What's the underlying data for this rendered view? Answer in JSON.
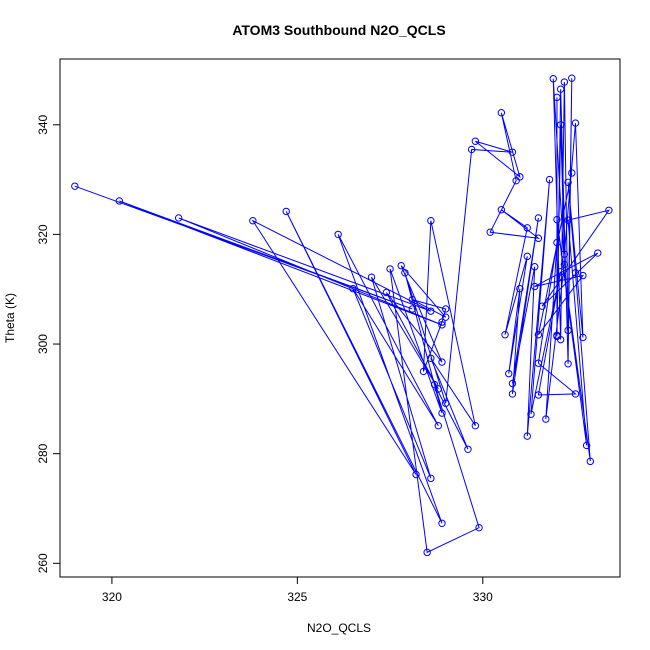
{
  "chart_data": {
    "type": "line",
    "title": "ATOM3 Southbound N2O_QCLS",
    "xlabel": "N2O_QCLS",
    "ylabel": "Theta (K)",
    "xlim": [
      318.6,
      333.7
    ],
    "ylim": [
      257.5,
      352.0
    ],
    "x_ticks": [
      320,
      325,
      330
    ],
    "y_ticks": [
      260,
      280,
      300,
      320,
      340
    ],
    "grid": false,
    "legend": "none",
    "markers": "open-circle",
    "series": [
      {
        "color": "#0000ff",
        "points": [
          [
            319.0,
            328.8
          ],
          [
            328.1,
            306.4
          ],
          [
            320.2,
            326.1
          ],
          [
            328.9,
            303.5
          ],
          [
            321.8,
            323.0
          ],
          [
            328.6,
            306.0
          ],
          [
            323.8,
            322.5
          ],
          [
            328.2,
            276.2
          ],
          [
            324.7,
            324.2
          ],
          [
            328.9,
            267.3
          ],
          [
            326.1,
            320.0
          ],
          [
            328.8,
            285.1
          ],
          [
            326.5,
            310.1
          ],
          [
            328.6,
            275.5
          ],
          [
            327.0,
            312.2
          ],
          [
            328.8,
            291.8
          ],
          [
            327.4,
            309.4
          ],
          [
            328.9,
            296.7
          ],
          [
            327.8,
            314.3
          ],
          [
            329.0,
            304.9
          ],
          [
            328.1,
            308.1
          ],
          [
            329.0,
            306.4
          ],
          [
            328.9,
            304.0
          ],
          [
            328.4,
            295.0
          ],
          [
            328.6,
            322.5
          ],
          [
            329.8,
            285.1
          ],
          [
            328.6,
            297.4
          ],
          [
            329.6,
            280.8
          ],
          [
            328.7,
            292.6
          ],
          [
            329.9,
            266.5
          ],
          [
            328.5,
            262.0
          ],
          [
            327.5,
            313.7
          ],
          [
            328.9,
            287.4
          ],
          [
            327.9,
            313.0
          ],
          [
            329.0,
            289.2
          ],
          [
            329.7,
            335.5
          ],
          [
            330.8,
            335.0
          ],
          [
            329.8,
            337.0
          ],
          [
            331.0,
            330.5
          ],
          [
            330.5,
            342.2
          ],
          [
            330.9,
            329.8
          ],
          [
            330.2,
            320.4
          ],
          [
            331.5,
            319.3
          ],
          [
            330.5,
            324.5
          ],
          [
            331.2,
            321.2
          ],
          [
            330.6,
            301.7
          ],
          [
            331.2,
            316.0
          ],
          [
            330.7,
            294.6
          ],
          [
            331.0,
            310.1
          ],
          [
            330.8,
            290.9
          ],
          [
            331.5,
            323.0
          ],
          [
            330.8,
            292.8
          ],
          [
            331.4,
            314.1
          ],
          [
            331.2,
            283.2
          ],
          [
            331.8,
            330.0
          ],
          [
            331.3,
            287.2
          ],
          [
            332.1,
            313.2
          ],
          [
            331.5,
            290.7
          ],
          [
            332.5,
            290.9
          ],
          [
            331.5,
            296.5
          ],
          [
            332.0,
            318.5
          ],
          [
            331.7,
            286.3
          ],
          [
            332.2,
            314.5
          ],
          [
            331.9,
            348.4
          ],
          [
            332.1,
            300.8
          ],
          [
            332.2,
            347.8
          ],
          [
            332.3,
            302.5
          ],
          [
            332.4,
            348.5
          ],
          [
            332.3,
            296.4
          ],
          [
            332.1,
            346.5
          ],
          [
            332.0,
            301.6
          ],
          [
            332.0,
            345.0
          ],
          [
            332.0,
            301.4
          ],
          [
            332.1,
            340.0
          ],
          [
            332.2,
            316.4
          ],
          [
            332.5,
            340.3
          ],
          [
            332.7,
            301.2
          ],
          [
            332.3,
            329.5
          ],
          [
            332.5,
            313.0
          ],
          [
            332.9,
            278.6
          ],
          [
            332.0,
            322.7
          ],
          [
            332.8,
            281.5
          ],
          [
            332.3,
            322.6
          ],
          [
            333.4,
            324.4
          ],
          [
            331.6,
            306.9
          ],
          [
            333.1,
            316.6
          ],
          [
            331.4,
            310.5
          ],
          [
            332.7,
            312.5
          ],
          [
            331.5,
            301.7
          ],
          [
            332.4,
            331.2
          ]
        ]
      }
    ]
  }
}
